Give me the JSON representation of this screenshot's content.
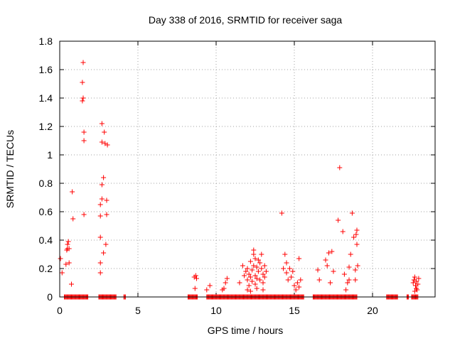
{
  "chart_data": {
    "type": "scatter",
    "title": "Day 338 of 2016, SRMTID for receiver saga",
    "xlabel": "GPS time / hours",
    "ylabel": "SRMTID / TECUs",
    "xlim": [
      0,
      24
    ],
    "ylim": [
      0,
      1.8
    ],
    "xticks": [
      0,
      5,
      10,
      15,
      20
    ],
    "xtick_labels": [
      "0",
      "5",
      "10",
      "15",
      "20"
    ],
    "yticks": [
      0,
      0.2,
      0.4,
      0.6,
      0.8,
      1,
      1.2,
      1.4,
      1.6,
      1.8
    ],
    "ytick_labels": [
      "0",
      "0.2",
      "0.4",
      "0.6",
      "0.8",
      "1",
      "1.2",
      "1.4",
      "1.6",
      "1.8"
    ],
    "grid": true,
    "marker": "plus",
    "color": "#ff0000",
    "series": [
      {
        "name": "SRMTID",
        "points": [
          [
            0.05,
            0.27
          ],
          [
            0.15,
            0.17
          ],
          [
            0.3,
            0.0
          ],
          [
            0.4,
            0.23
          ],
          [
            0.45,
            0.33
          ],
          [
            0.5,
            0.34
          ],
          [
            0.5,
            0.37
          ],
          [
            0.55,
            0.39
          ],
          [
            0.6,
            0.34
          ],
          [
            0.6,
            0.24
          ],
          [
            0.75,
            0.09
          ],
          [
            0.8,
            0.74
          ],
          [
            0.85,
            0.55
          ],
          [
            1.0,
            0.0
          ],
          [
            1.5,
            1.65
          ],
          [
            1.45,
            1.51
          ],
          [
            1.5,
            1.4
          ],
          [
            1.45,
            1.38
          ],
          [
            1.55,
            1.16
          ],
          [
            1.55,
            1.1
          ],
          [
            1.55,
            0.58
          ],
          [
            2.6,
            0.65
          ],
          [
            2.6,
            0.57
          ],
          [
            2.6,
            0.42
          ],
          [
            2.6,
            0.24
          ],
          [
            2.6,
            0.17
          ],
          [
            2.7,
            1.22
          ],
          [
            2.7,
            1.09
          ],
          [
            2.7,
            0.79
          ],
          [
            2.7,
            0.69
          ],
          [
            2.8,
            0.84
          ],
          [
            2.8,
            0.31
          ],
          [
            2.85,
            1.16
          ],
          [
            2.9,
            1.08
          ],
          [
            2.95,
            0.37
          ],
          [
            3.0,
            0.68
          ],
          [
            3.0,
            0.58
          ],
          [
            3.05,
            1.07
          ],
          [
            8.6,
            0.14
          ],
          [
            8.65,
            0.06
          ],
          [
            8.7,
            0.15
          ],
          [
            8.75,
            0.13
          ],
          [
            9.4,
            0.05
          ],
          [
            9.6,
            0.08
          ],
          [
            10.4,
            0.05
          ],
          [
            10.5,
            0.06
          ],
          [
            10.6,
            0.1
          ],
          [
            10.7,
            0.13
          ],
          [
            11.5,
            0.1
          ],
          [
            11.7,
            0.22
          ],
          [
            11.8,
            0.15
          ],
          [
            11.9,
            0.18
          ],
          [
            12.0,
            0.12
          ],
          [
            12.0,
            0.2
          ],
          [
            12.1,
            0.08
          ],
          [
            12.1,
            0.16
          ],
          [
            12.2,
            0.25
          ],
          [
            12.2,
            0.14
          ],
          [
            12.3,
            0.11
          ],
          [
            12.3,
            0.19
          ],
          [
            12.4,
            0.3
          ],
          [
            12.4,
            0.33
          ],
          [
            12.4,
            0.22
          ],
          [
            12.5,
            0.27
          ],
          [
            12.5,
            0.15
          ],
          [
            12.5,
            0.09
          ],
          [
            12.6,
            0.21
          ],
          [
            12.6,
            0.13
          ],
          [
            12.7,
            0.26
          ],
          [
            12.7,
            0.18
          ],
          [
            12.8,
            0.12
          ],
          [
            12.8,
            0.24
          ],
          [
            12.9,
            0.2
          ],
          [
            12.9,
            0.3
          ],
          [
            13.0,
            0.16
          ],
          [
            13.0,
            0.1
          ],
          [
            13.1,
            0.22
          ],
          [
            13.1,
            0.14
          ],
          [
            13.2,
            0.18
          ],
          [
            12.0,
            0.05
          ],
          [
            12.2,
            0.04
          ],
          [
            12.6,
            0.06
          ],
          [
            13.0,
            0.05
          ],
          [
            14.2,
            0.59
          ],
          [
            14.3,
            0.2
          ],
          [
            14.4,
            0.3
          ],
          [
            14.5,
            0.24
          ],
          [
            14.5,
            0.17
          ],
          [
            14.6,
            0.12
          ],
          [
            14.7,
            0.2
          ],
          [
            14.8,
            0.14
          ],
          [
            14.9,
            0.18
          ],
          [
            15.0,
            0.08
          ],
          [
            15.1,
            0.05
          ],
          [
            15.2,
            0.1
          ],
          [
            15.3,
            0.27
          ],
          [
            15.3,
            0.07
          ],
          [
            15.4,
            0.12
          ],
          [
            16.5,
            0.19
          ],
          [
            16.6,
            0.12
          ],
          [
            17.0,
            0.26
          ],
          [
            17.1,
            0.22
          ],
          [
            17.2,
            0.31
          ],
          [
            17.3,
            0.1
          ],
          [
            17.4,
            0.32
          ],
          [
            17.5,
            0.18
          ],
          [
            17.8,
            0.54
          ],
          [
            17.9,
            0.91
          ],
          [
            18.1,
            0.46
          ],
          [
            18.2,
            0.16
          ],
          [
            18.3,
            0.05
          ],
          [
            18.4,
            0.1
          ],
          [
            18.5,
            0.21
          ],
          [
            18.5,
            0.12
          ],
          [
            18.6,
            0.3
          ],
          [
            18.7,
            0.59
          ],
          [
            18.8,
            0.42
          ],
          [
            18.9,
            0.19
          ],
          [
            18.95,
            0.44
          ],
          [
            19.0,
            0.47
          ],
          [
            19.0,
            0.37
          ],
          [
            19.05,
            0.22
          ],
          [
            18.9,
            0.12
          ],
          [
            22.6,
            0.1
          ],
          [
            22.65,
            0.12
          ],
          [
            22.7,
            0.14
          ],
          [
            22.75,
            0.08
          ],
          [
            22.8,
            0.11
          ],
          [
            22.85,
            0.05
          ],
          [
            22.9,
            0.09
          ],
          [
            22.95,
            0.13
          ],
          [
            22.7,
            0.04
          ],
          [
            22.8,
            0.06
          ]
        ]
      }
    ],
    "zero_segments": [
      [
        0.3,
        1.8
      ],
      [
        2.5,
        3.6
      ],
      [
        4.1,
        4.2
      ],
      [
        8.2,
        8.8
      ],
      [
        9.4,
        15.6
      ],
      [
        16.2,
        19.0
      ],
      [
        20.9,
        21.6
      ],
      [
        22.2,
        22.3
      ],
      [
        22.5,
        22.9
      ]
    ]
  }
}
